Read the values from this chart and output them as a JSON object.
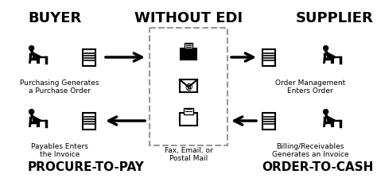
{
  "bg_color": "#ffffff",
  "title_buyer": "BUYER",
  "title_without_edi": "WITHOUT EDI",
  "title_supplier": "SUPPLIER",
  "footer_left": "PROCURE-TO-PAY",
  "footer_right": "ORDER-TO-CASH",
  "label_top_left": "Purchasing Generates\na Purchase Order",
  "label_bottom_left": "Payables Enters\nthe Invoice",
  "label_center": "Fax, Email, or\nPostal Mail",
  "label_top_right": "Order Management\nEnters Order",
  "label_bottom_right": "Billing/Receivables\nGenerates an Invoice",
  "fig_width": 4.74,
  "fig_height": 2.24,
  "dpi": 100
}
